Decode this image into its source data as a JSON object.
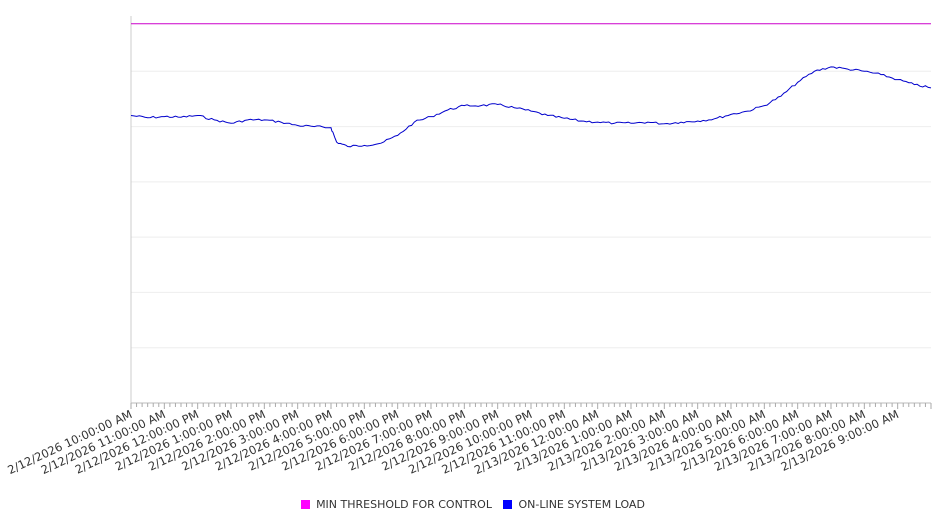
{
  "chart_data": {
    "type": "line",
    "x_start": "2/12/2026 10:00:00 AM",
    "x_end": "2/13/2026 10:00:00 AM",
    "x_tick_labels": [
      "2/12/2026 10:00:00 AM",
      "2/12/2026 11:00:00 AM",
      "2/12/2026 12:00:00 PM",
      "2/12/2026 1:00:00 PM",
      "2/12/2026 2:00:00 PM",
      "2/12/2026 3:00:00 PM",
      "2/12/2026 4:00:00 PM",
      "2/12/2026 5:00:00 PM",
      "2/12/2026 6:00:00 PM",
      "2/12/2026 7:00:00 PM",
      "2/12/2026 8:00:00 PM",
      "2/12/2026 9:00:00 PM",
      "2/12/2026 10:00:00 PM",
      "2/12/2026 11:00:00 PM",
      "2/13/2026 12:00:00 AM",
      "2/13/2026 1:00:00 AM",
      "2/13/2026 2:00:00 AM",
      "2/13/2026 3:00:00 AM",
      "2/13/2026 4:00:00 AM",
      "2/13/2026 5:00:00 AM",
      "2/13/2026 6:00:00 AM",
      "2/13/2026 7:00:00 AM",
      "2/13/2026 8:00:00 AM",
      "2/13/2026 9:00:00 AM"
    ],
    "y_range": [
      0,
      7
    ],
    "y_gridlines": [
      1,
      2,
      3,
      4,
      5,
      6
    ],
    "grid": true,
    "legend_position": "bottom",
    "series": [
      {
        "name": "MIN THRESHOLD FOR CONTROL",
        "color": "#cc00cc",
        "x": [
          "2/12/2026 10:00:00 AM",
          "2/13/2026 10:00:00 AM"
        ],
        "y": [
          6.86,
          6.86
        ]
      },
      {
        "name": "ON-LINE SYSTEM LOAD",
        "color": "#0000cc",
        "x": [
          "2/12/2026 10:00:00 AM",
          "2/12/2026 10:30:00 AM",
          "2/12/2026 11:00:00 AM",
          "2/12/2026 11:30:00 AM",
          "2/12/2026 12:00:00 PM",
          "2/12/2026 12:30:00 PM",
          "2/12/2026 1:00:00 PM",
          "2/12/2026 1:30:00 PM",
          "2/12/2026 2:00:00 PM",
          "2/12/2026 2:30:00 PM",
          "2/12/2026 3:00:00 PM",
          "2/12/2026 3:30:00 PM",
          "2/12/2026 4:00:00 PM",
          "2/12/2026 4:10:00 PM",
          "2/12/2026 4:30:00 PM",
          "2/12/2026 5:00:00 PM",
          "2/12/2026 5:30:00 PM",
          "2/12/2026 6:00:00 PM",
          "2/12/2026 6:30:00 PM",
          "2/12/2026 7:00:00 PM",
          "2/12/2026 7:30:00 PM",
          "2/12/2026 8:00:00 PM",
          "2/12/2026 8:30:00 PM",
          "2/12/2026 9:00:00 PM",
          "2/12/2026 9:30:00 PM",
          "2/12/2026 10:00:00 PM",
          "2/12/2026 10:30:00 PM",
          "2/12/2026 11:00:00 PM",
          "2/12/2026 11:30:00 PM",
          "2/13/2026 12:00:00 AM",
          "2/13/2026 12:30:00 AM",
          "2/13/2026 1:00:00 AM",
          "2/13/2026 1:30:00 AM",
          "2/13/2026 2:00:00 AM",
          "2/13/2026 2:30:00 AM",
          "2/13/2026 3:00:00 AM",
          "2/13/2026 3:30:00 AM",
          "2/13/2026 4:00:00 AM",
          "2/13/2026 4:30:00 AM",
          "2/13/2026 5:00:00 AM",
          "2/13/2026 5:30:00 AM",
          "2/13/2026 6:00:00 AM",
          "2/13/2026 6:30:00 AM",
          "2/13/2026 7:00:00 AM",
          "2/13/2026 7:30:00 AM",
          "2/13/2026 8:00:00 AM",
          "2/13/2026 8:30:00 AM",
          "2/13/2026 9:00:00 AM",
          "2/13/2026 9:30:00 AM",
          "2/13/2026 10:00:00 AM"
        ],
        "y": [
          5.2,
          5.16,
          5.18,
          5.17,
          5.2,
          5.12,
          5.06,
          5.12,
          5.12,
          5.08,
          5.02,
          5.0,
          4.98,
          4.72,
          4.64,
          4.66,
          4.7,
          4.84,
          5.08,
          5.18,
          5.3,
          5.38,
          5.38,
          5.4,
          5.34,
          5.28,
          5.2,
          5.15,
          5.1,
          5.08,
          5.06,
          5.06,
          5.08,
          5.05,
          5.08,
          5.1,
          5.14,
          5.22,
          5.28,
          5.38,
          5.55,
          5.8,
          6.0,
          6.08,
          6.04,
          6.0,
          5.94,
          5.85,
          5.76,
          5.7
        ]
      }
    ]
  }
}
